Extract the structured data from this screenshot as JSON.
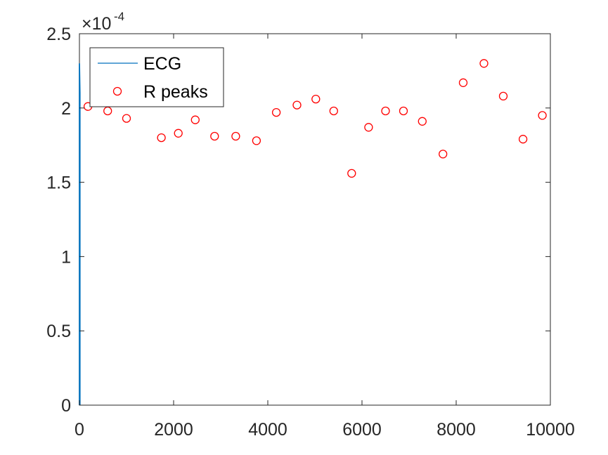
{
  "chart_data": {
    "type": "scatter",
    "title": "",
    "xlabel": "",
    "ylabel": "",
    "xlim": [
      0,
      10000
    ],
    "ylim": [
      0,
      2.5
    ],
    "y_exponent": {
      "base_symbol": "×10",
      "power": "-4"
    },
    "grid": false,
    "legend_position": "top-left",
    "x_ticks": [
      "0",
      "2000",
      "4000",
      "6000",
      "8000",
      "10000"
    ],
    "y_ticks": [
      "0",
      "0.5",
      "1",
      "1.5",
      "2",
      "2.5"
    ],
    "series": [
      {
        "name": "ECG",
        "kind": "line",
        "color": "#0072bd",
        "points": [
          [
            0,
            0
          ],
          [
            0,
            2.3
          ],
          [
            10,
            2.1
          ],
          [
            10,
            0
          ]
        ]
      },
      {
        "name": "R peaks",
        "kind": "markers",
        "marker": "circle-open",
        "color": "#ff0000",
        "x": [
          180,
          600,
          1000,
          1740,
          2100,
          2460,
          2870,
          3320,
          3760,
          4180,
          4620,
          5020,
          5400,
          5780,
          6140,
          6500,
          6880,
          7280,
          7720,
          8150,
          8590,
          9000,
          9420,
          9830
        ],
        "y": [
          2.01,
          1.98,
          1.93,
          1.8,
          1.83,
          1.92,
          1.81,
          1.81,
          1.78,
          1.97,
          2.02,
          2.06,
          1.98,
          1.56,
          1.87,
          1.98,
          1.98,
          1.91,
          1.69,
          2.17,
          2.3,
          2.08,
          1.79,
          1.95
        ]
      }
    ]
  }
}
